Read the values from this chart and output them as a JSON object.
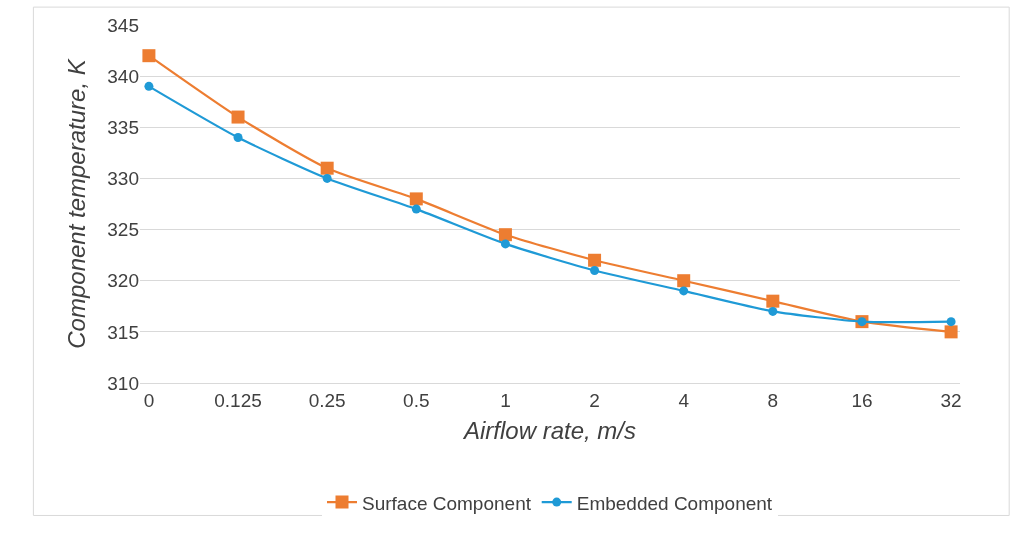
{
  "chart_data": {
    "type": "line",
    "xlabel": "Airflow rate, m/s",
    "ylabel": "Component temperature, K",
    "categories": [
      "0",
      "0.125",
      "0.25",
      "0.5",
      "1",
      "2",
      "4",
      "8",
      "16",
      "32"
    ],
    "series": [
      {
        "name": "Surface Component",
        "color": "#ed7d31",
        "marker": "square",
        "values": [
          342,
          336,
          331,
          328,
          324.5,
          322,
          320,
          318,
          316,
          315
        ]
      },
      {
        "name": "Embedded Component",
        "color": "#1f9ad6",
        "marker": "circle",
        "values": [
          339,
          334,
          330,
          327,
          323.6,
          321,
          319,
          317,
          316,
          316
        ]
      }
    ],
    "ylim": [
      310,
      345
    ],
    "yticks": [
      310,
      315,
      320,
      325,
      330,
      335,
      340,
      345
    ],
    "grid": "y",
    "legend": "bottom",
    "line_style": "solid"
  }
}
